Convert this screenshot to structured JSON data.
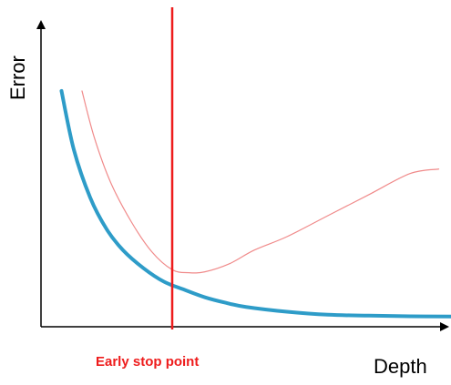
{
  "chart_data": {
    "type": "line",
    "title": "",
    "xlabel": "Depth",
    "ylabel": "Error",
    "grid": false,
    "xlim": [
      0,
      10
    ],
    "ylim": [
      0,
      10
    ],
    "series": [
      {
        "color": "#2e9cc8",
        "x": [
          0.5,
          0.8,
          1.2,
          1.6,
          2.0,
          2.5,
          3.0,
          3.5,
          4.0,
          4.5,
          5.0,
          6.0,
          7.0,
          8.0,
          9.0,
          10.0
        ],
        "y": [
          7.85,
          5.9,
          4.3,
          3.25,
          2.55,
          1.95,
          1.5,
          1.23,
          0.98,
          0.8,
          0.66,
          0.5,
          0.4,
          0.37,
          0.35,
          0.34
        ]
      },
      {
        "color": "#f08a8a",
        "x": [
          1.0,
          1.3,
          1.7,
          2.2,
          2.7,
          3.2,
          3.6,
          4.0,
          4.6,
          5.2,
          6.0,
          7.0,
          8.0,
          9.0,
          9.7
        ],
        "y": [
          7.85,
          6.3,
          4.8,
          3.5,
          2.5,
          1.9,
          1.8,
          1.83,
          2.1,
          2.55,
          3.0,
          3.7,
          4.4,
          5.1,
          5.25
        ]
      }
    ],
    "annotations": [
      {
        "type": "vline",
        "x": 3.2,
        "color": "#ee1c1c",
        "label": "Early stop point"
      }
    ]
  }
}
